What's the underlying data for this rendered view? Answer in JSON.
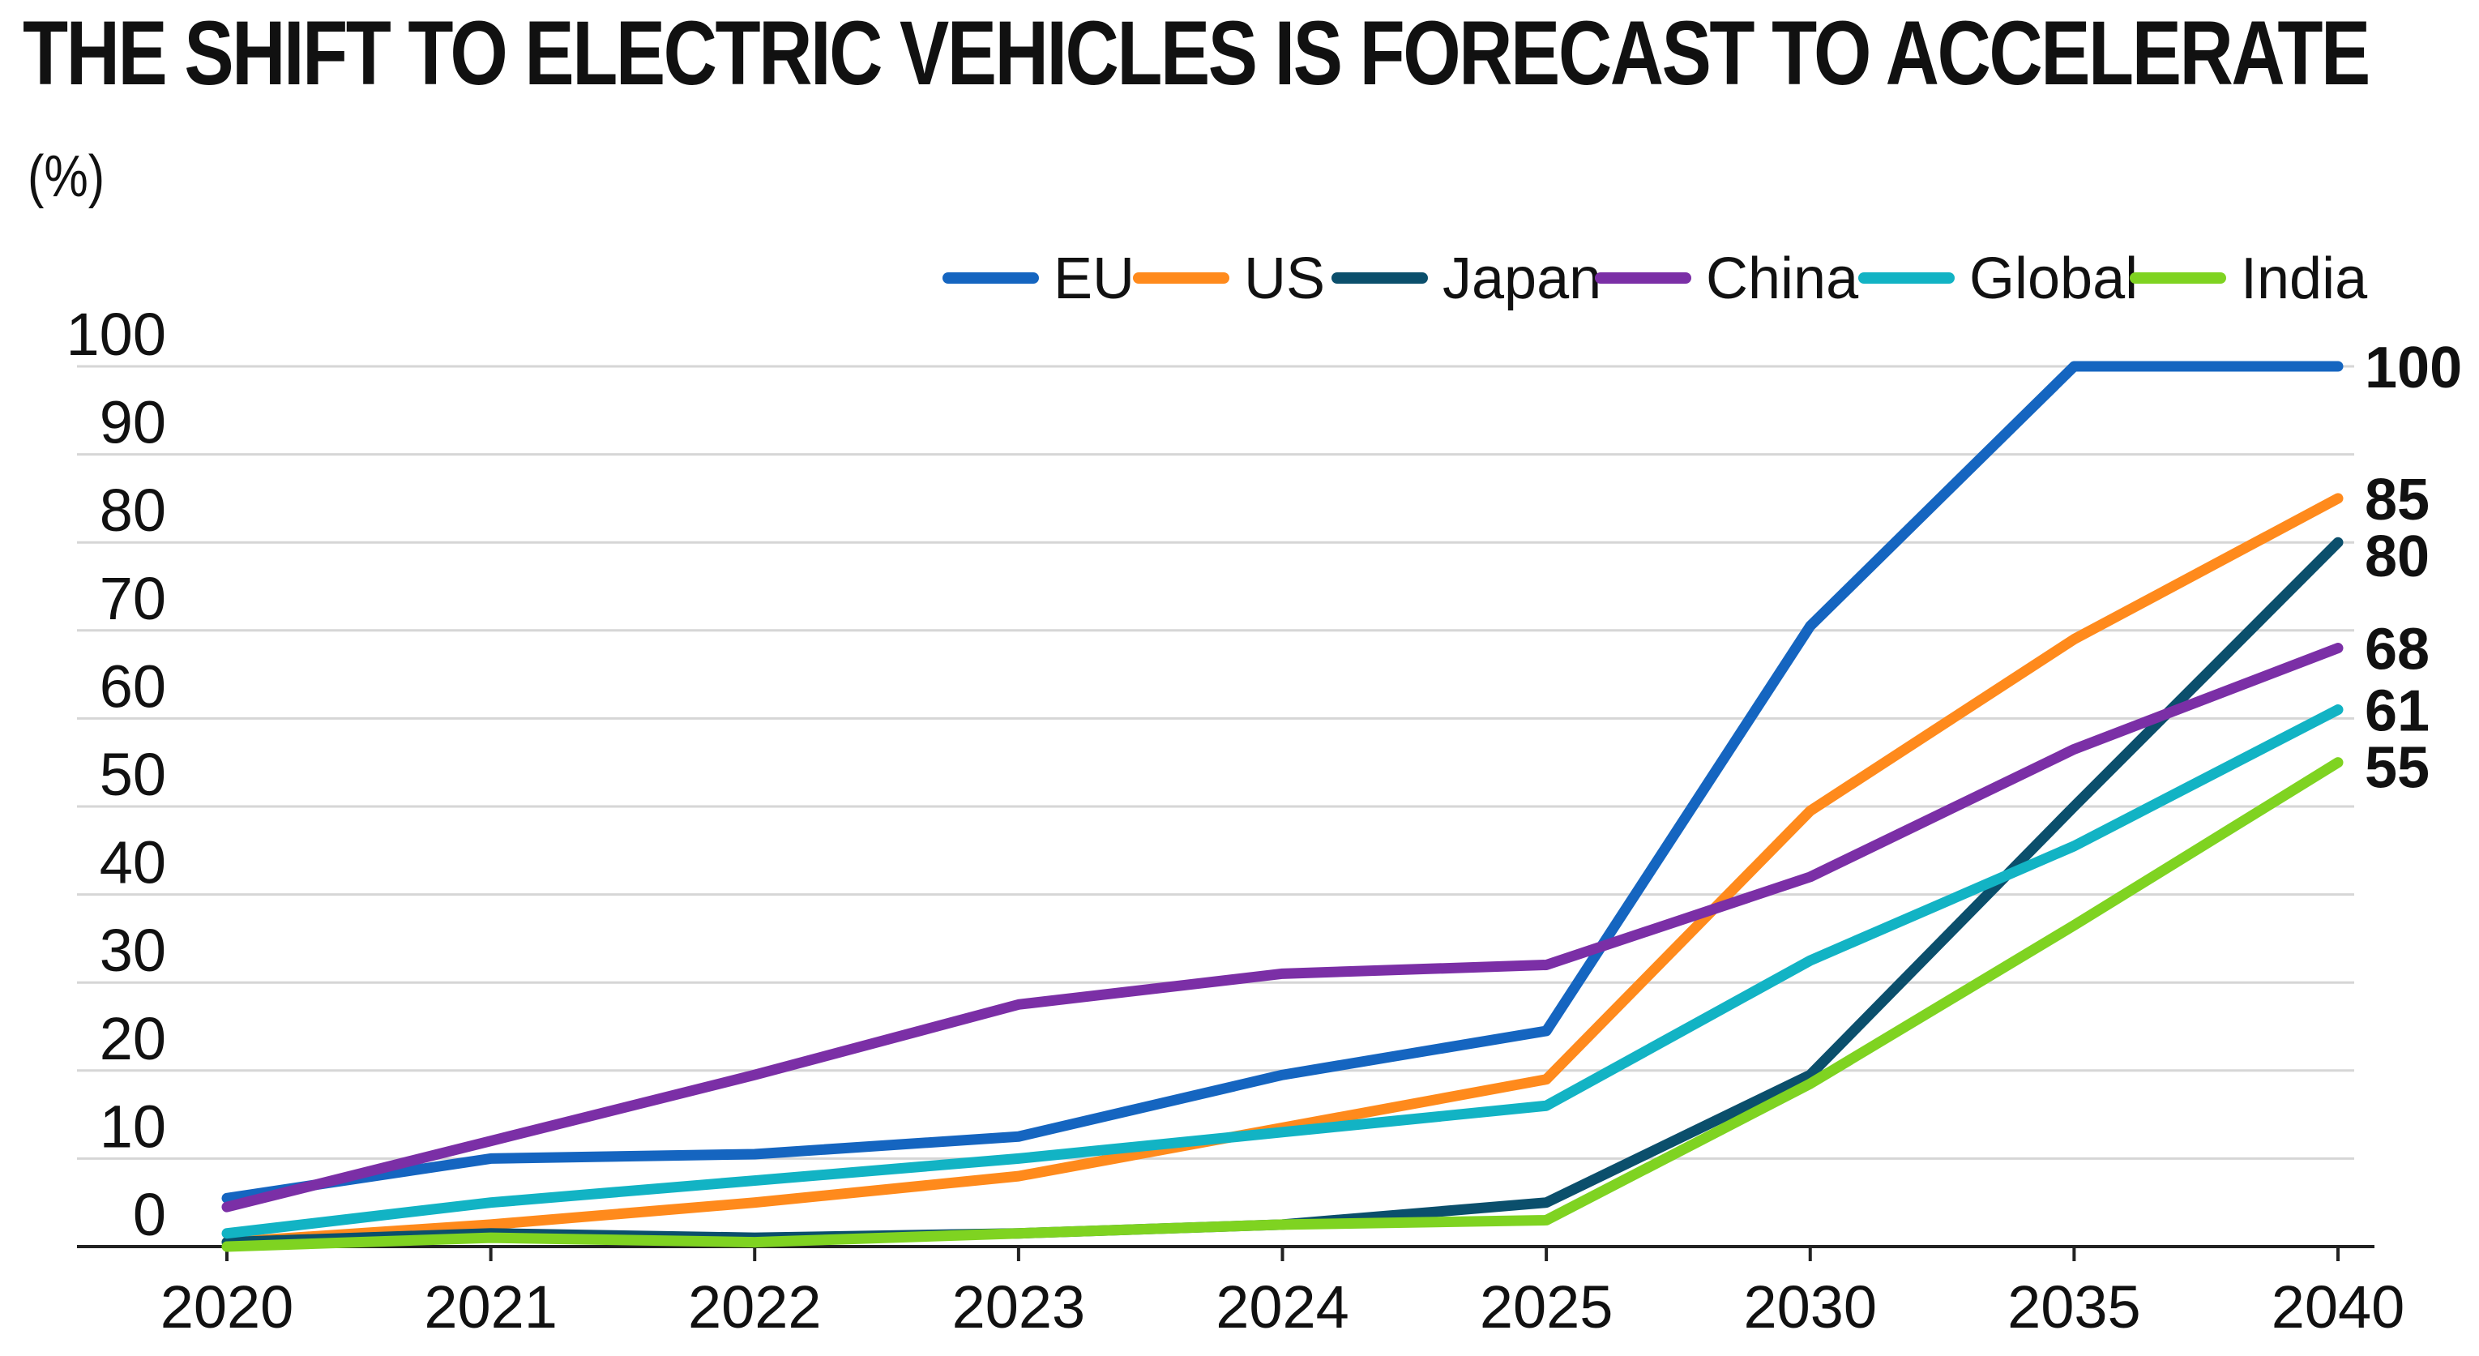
{
  "chart_data": {
    "type": "line",
    "title": "THE SHIFT TO ELECTRIC VEHICLES IS FORECAST TO ACCELERATE",
    "unit_label": "(%)",
    "xlabel": "",
    "ylabel": "(%)",
    "categories": [
      "2020",
      "2021",
      "2022",
      "2023",
      "2024",
      "2025",
      "2030",
      "2035",
      "2040"
    ],
    "y_ticks": [
      0,
      10,
      20,
      30,
      40,
      50,
      60,
      70,
      80,
      90,
      100
    ],
    "ylim": [
      0,
      100
    ],
    "grid": true,
    "legend_position": "top-right",
    "series": [
      {
        "name": "EU",
        "color": "#1565c0",
        "values": [
          5.5,
          10,
          10.5,
          12.5,
          19.5,
          24.5,
          70.5,
          100,
          100
        ],
        "end_label": "100"
      },
      {
        "name": "US",
        "color": "#ff8a1c",
        "values": [
          0.5,
          2.5,
          5,
          8,
          13.5,
          19,
          49.5,
          69,
          85
        ],
        "end_label": "85"
      },
      {
        "name": "Japan",
        "color": "#0b4f6c",
        "values": [
          0.5,
          1.5,
          1,
          1.5,
          2.5,
          5,
          19.5,
          50,
          80
        ],
        "end_label": "80"
      },
      {
        "name": "China",
        "color": "#7b2fa6",
        "values": [
          4.5,
          12,
          19.5,
          27.5,
          31,
          32,
          42,
          56.5,
          68
        ],
        "end_label": "68"
      },
      {
        "name": "Global",
        "color": "#12b3c4",
        "values": [
          1.5,
          5,
          7.5,
          10,
          13,
          16,
          32.5,
          45.5,
          61
        ],
        "end_label": "61"
      },
      {
        "name": "India",
        "color": "#7fd321",
        "values": [
          0,
          1,
          0.5,
          1.5,
          2.5,
          3,
          18.5,
          36.5,
          55
        ],
        "end_label": "55"
      }
    ]
  }
}
